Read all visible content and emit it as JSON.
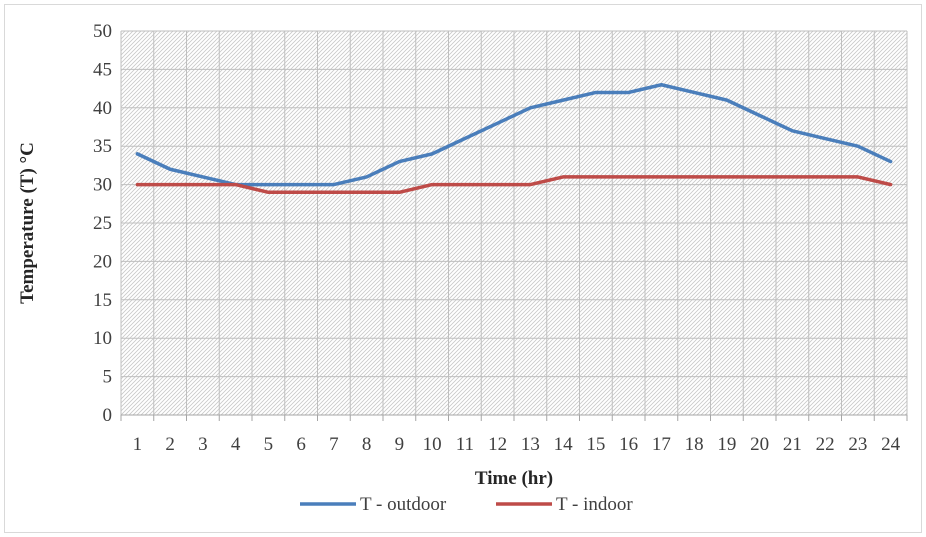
{
  "chart_data": {
    "type": "line",
    "title": "",
    "xlabel": "Time (hr)",
    "ylabel": "Temperature (T)  °C",
    "ylim": [
      0,
      50
    ],
    "yticks": [
      "0",
      "5",
      "10",
      "15",
      "20",
      "25",
      "30",
      "35",
      "40",
      "45",
      "50"
    ],
    "categories": [
      "1",
      "2",
      "3",
      "4",
      "5",
      "6",
      "7",
      "8",
      "9",
      "10",
      "11",
      "12",
      "13",
      "14",
      "15",
      "16",
      "17",
      "18",
      "19",
      "20",
      "21",
      "22",
      "23",
      "24"
    ],
    "grid": true,
    "legend_position": "bottom",
    "series": [
      {
        "name": "T - outdoor",
        "color": "#4a7ebb",
        "values": [
          34,
          32,
          31,
          30,
          30,
          30,
          30,
          31,
          33,
          34,
          36,
          38,
          40,
          41,
          42,
          42,
          43,
          42,
          41,
          39,
          37,
          36,
          35,
          33
        ]
      },
      {
        "name": "T - indoor",
        "color": "#be4b48",
        "values": [
          30,
          30,
          30,
          30,
          29,
          29,
          29,
          29,
          29,
          30,
          30,
          30,
          30,
          31,
          31,
          31,
          31,
          31,
          31,
          31,
          31,
          31,
          31,
          30
        ]
      }
    ]
  }
}
